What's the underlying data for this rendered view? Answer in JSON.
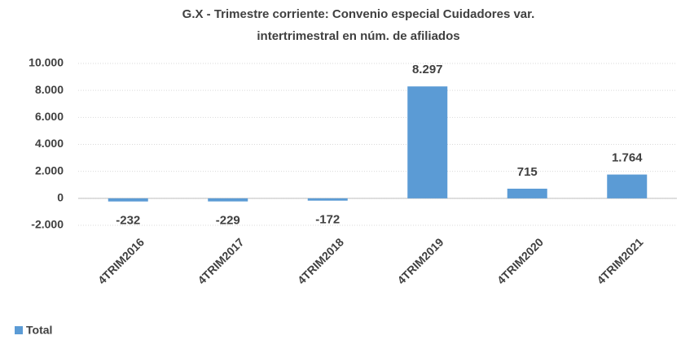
{
  "chart_data": {
    "type": "bar",
    "title": [
      "G.X - Trimestre corriente: Convenio especial Cuidadores var.",
      "intertrimestral en núm. de afiliados"
    ],
    "categories": [
      "4TRIM2016",
      "4TRIM2017",
      "4TRIM2018",
      "4TRIM2019",
      "4TRIM2020",
      "4TRIM2021"
    ],
    "series": [
      {
        "name": "Total",
        "color": "#5b9bd5",
        "values": [
          -232,
          -229,
          -172,
          8297,
          715,
          1764
        ],
        "value_labels": [
          "-232",
          "-229",
          "-172",
          "8.297",
          "715",
          "1.764"
        ]
      }
    ],
    "ylim": [
      -2000,
      10000
    ],
    "yticks": [
      {
        "value": -2000,
        "label": "-2.000"
      },
      0,
      {
        "value": 2000,
        "label": "2.000"
      },
      {
        "value": 4000,
        "label": "4.000"
      },
      {
        "value": 6000,
        "label": "6.000"
      },
      {
        "value": 8000,
        "label": "8.000"
      },
      {
        "value": 10000,
        "label": "10.000"
      }
    ],
    "grid": true,
    "legend": "bottom-left"
  }
}
